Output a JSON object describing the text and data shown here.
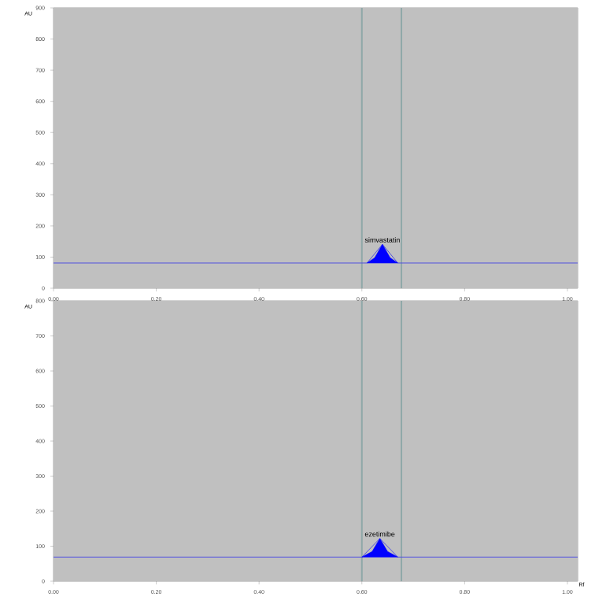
{
  "chart_data": [
    {
      "type": "line",
      "ylabel": "AU",
      "xlim": [
        0,
        1.02
      ],
      "ylim": [
        0,
        900
      ],
      "xticks": [
        {
          "value": 0,
          "label": "0.00"
        },
        {
          "value": 0.2,
          "label": "0.20"
        },
        {
          "value": 0.4,
          "label": "0.40"
        },
        {
          "value": 0.6,
          "label": "0.60"
        },
        {
          "value": 0.8,
          "label": "0.80"
        },
        {
          "value": 1.0,
          "label": "1.00"
        }
      ],
      "yticks": [
        0,
        100,
        200,
        300,
        400,
        500,
        600,
        700,
        800,
        900
      ],
      "grid": false,
      "series": [
        {
          "color": "#5050e0",
          "x": [
            0,
            0.61,
            0.64,
            0.67,
            1.02
          ],
          "values": [
            81,
            81,
            141,
            81,
            81
          ]
        },
        {
          "type": "area",
          "color": "#0000ff",
          "x": [
            0.61,
            0.625,
            0.64,
            0.655,
            0.67
          ],
          "values": [
            81,
            98,
            141,
            98,
            81
          ]
        }
      ],
      "ref_lines": [
        {
          "axis": "x",
          "value": 0.6,
          "color": "#8fa8a8"
        },
        {
          "axis": "x",
          "value": 0.677,
          "color": "#8fa8a8"
        }
      ],
      "annotations": [
        {
          "text": "simvastatin",
          "x": 0.64,
          "y": 141
        }
      ]
    },
    {
      "type": "line",
      "ylabel": "AU",
      "xlabel": "Rf",
      "xlim": [
        0,
        1.02
      ],
      "ylim": [
        0,
        800
      ],
      "xticks": [
        {
          "value": 0,
          "label": "0.00"
        },
        {
          "value": 0.2,
          "label": "0.20"
        },
        {
          "value": 0.4,
          "label": "0.40"
        },
        {
          "value": 0.6,
          "label": "0.60"
        },
        {
          "value": 0.8,
          "label": "0.80"
        },
        {
          "value": 1.0,
          "label": "1.00"
        }
      ],
      "yticks": [
        0,
        100,
        200,
        300,
        400,
        500,
        600,
        700,
        800
      ],
      "grid": false,
      "series": [
        {
          "color": "#5050e0",
          "x": [
            0,
            0.6,
            0.635,
            0.67,
            1.02
          ],
          "values": [
            69,
            69,
            122,
            69,
            69
          ]
        },
        {
          "type": "area",
          "color": "#0000ff",
          "x": [
            0.6,
            0.62,
            0.635,
            0.65,
            0.67
          ],
          "values": [
            69,
            85,
            122,
            85,
            69
          ]
        }
      ],
      "ref_lines": [
        {
          "axis": "x",
          "value": 0.6,
          "color": "#8fa8a8"
        },
        {
          "axis": "x",
          "value": 0.677,
          "color": "#8fa8a8"
        }
      ],
      "annotations": [
        {
          "text": "ezetimibe",
          "x": 0.635,
          "y": 122
        }
      ]
    }
  ]
}
